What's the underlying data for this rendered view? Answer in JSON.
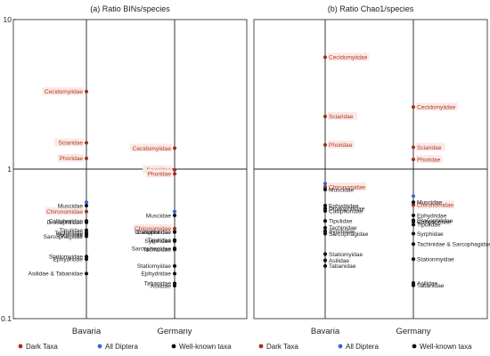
{
  "chart_data": [
    {
      "type": "scatter",
      "title": "(a) Ratio BINs/species",
      "yscale": "log",
      "ylim": [
        0.1,
        10
      ],
      "yticks": [
        "10",
        "1",
        "0.1"
      ],
      "categories": [
        "Bavaria",
        "Germany"
      ],
      "series": [
        {
          "name": "Dark Taxa",
          "color": "#a0321e",
          "points": [
            {
              "x": "Bavaria",
              "y": 3.3,
              "label": "Cecidomyiidae"
            },
            {
              "x": "Bavaria",
              "y": 1.5,
              "label": "Sciaridae"
            },
            {
              "x": "Bavaria",
              "y": 1.18,
              "label": "Phoridae"
            },
            {
              "x": "Bavaria",
              "y": 0.52,
              "label": "Chironomidae"
            },
            {
              "x": "Germany",
              "y": 1.38,
              "label": "Cecidomyiidae"
            },
            {
              "x": "Germany",
              "y": 0.99,
              "label": "Sciaridae"
            },
            {
              "x": "Germany",
              "y": 0.93,
              "label": "Phoridae"
            },
            {
              "x": "Germany",
              "y": 0.4,
              "label": "Chironomidae"
            }
          ]
        },
        {
          "name": "All Diptera",
          "color": "#3a64d8",
          "points": [
            {
              "x": "Bavaria",
              "y": 0.6
            },
            {
              "x": "Germany",
              "y": 0.52
            }
          ]
        },
        {
          "name": "Well-known taxa",
          "color": "#111111",
          "points": [
            {
              "x": "Bavaria",
              "y": 0.57,
              "label": "Muscidae"
            },
            {
              "x": "Bavaria",
              "y": 0.45,
              "label": "Calliphoridae"
            },
            {
              "x": "Bavaria",
              "y": 0.44,
              "label": "Drosophilidae"
            },
            {
              "x": "Bavaria",
              "y": 0.39,
              "label": "Tipulidae"
            },
            {
              "x": "Bavaria",
              "y": 0.375,
              "label": "Tachinidae"
            },
            {
              "x": "Bavaria",
              "y": 0.365,
              "label": "Syrphidae"
            },
            {
              "x": "Bavaria",
              "y": 0.355,
              "label": "Sarcophagidae"
            },
            {
              "x": "Bavaria",
              "y": 0.26,
              "label": "Statiomyidae"
            },
            {
              "x": "Bavaria",
              "y": 0.25,
              "label": "Ephydridae"
            },
            {
              "x": "Bavaria",
              "y": 0.2,
              "label": "Asilidae & Tabanidae"
            },
            {
              "x": "Germany",
              "y": 0.49,
              "label": "Muscidae"
            },
            {
              "x": "Germany",
              "y": 0.38,
              "label": "Drosophilidae"
            },
            {
              "x": "Germany",
              "y": 0.38,
              "label": "Calliphoridae"
            },
            {
              "x": "Germany",
              "y": 0.335,
              "label": "Tipulidae"
            },
            {
              "x": "Germany",
              "y": 0.33,
              "label": "Syrphidae"
            },
            {
              "x": "Germany",
              "y": 0.295,
              "label": "Sarcophagidae"
            },
            {
              "x": "Germany",
              "y": 0.29,
              "label": "Tachinidae"
            },
            {
              "x": "Germany",
              "y": 0.225,
              "label": "Statiomyidae"
            },
            {
              "x": "Germany",
              "y": 0.2,
              "label": "Ephydridae"
            },
            {
              "x": "Germany",
              "y": 0.172,
              "label": "Tabanidae"
            },
            {
              "x": "Germany",
              "y": 0.166,
              "label": "Asilidae"
            }
          ]
        }
      ],
      "legend": [
        "Dark Taxa",
        "All Diptera",
        "Well-known taxa"
      ],
      "legend_position": "bottom",
      "grid": false
    },
    {
      "type": "scatter",
      "title": "(b) Ratio Chao1/species",
      "yscale": "log",
      "ylim": [
        0.1,
        10
      ],
      "yticks": [],
      "categories": [
        "Bavaria",
        "Germany"
      ],
      "series": [
        {
          "name": "Dark Taxa",
          "color": "#a0321e",
          "points": [
            {
              "x": "Bavaria",
              "y": 5.6,
              "label": "Cecidomyiidae"
            },
            {
              "x": "Bavaria",
              "y": 2.25,
              "label": "Sciaridae"
            },
            {
              "x": "Bavaria",
              "y": 1.45,
              "label": "Phoridae"
            },
            {
              "x": "Bavaria",
              "y": 0.76,
              "label": "Chironomidae"
            },
            {
              "x": "Germany",
              "y": 2.6,
              "label": "Cecidomyiidae"
            },
            {
              "x": "Germany",
              "y": 1.4,
              "label": "Sciaridae"
            },
            {
              "x": "Germany",
              "y": 1.16,
              "label": "Phoridae"
            },
            {
              "x": "Germany",
              "y": 0.575,
              "label": "Chironomidae"
            }
          ]
        },
        {
          "name": "All Diptera",
          "color": "#3a64d8",
          "points": [
            {
              "x": "Bavaria",
              "y": 0.8
            },
            {
              "x": "Germany",
              "y": 0.66
            }
          ]
        },
        {
          "name": "Well-known taxa",
          "color": "#111111",
          "points": [
            {
              "x": "Bavaria",
              "y": 0.73,
              "label": "Muscidae"
            },
            {
              "x": "Bavaria",
              "y": 0.57,
              "label": "Ephydridae"
            },
            {
              "x": "Bavaria",
              "y": 0.545,
              "label": "Drosophilidae"
            },
            {
              "x": "Bavaria",
              "y": 0.525,
              "label": "Calliphoridae"
            },
            {
              "x": "Bavaria",
              "y": 0.45,
              "label": "Tipulidae"
            },
            {
              "x": "Bavaria",
              "y": 0.385,
              "label": "Syrphidae"
            },
            {
              "x": "Bavaria",
              "y": 0.405,
              "label": "Tachinidae"
            },
            {
              "x": "Bavaria",
              "y": 0.37,
              "label": "Sarcophagidae"
            },
            {
              "x": "Bavaria",
              "y": 0.27,
              "label": "Statiomyidae"
            },
            {
              "x": "Bavaria",
              "y": 0.245,
              "label": "Asilidae"
            },
            {
              "x": "Bavaria",
              "y": 0.225,
              "label": "Tabanidae"
            },
            {
              "x": "Germany",
              "y": 0.6,
              "label": "Muscidae"
            },
            {
              "x": "Germany",
              "y": 0.49,
              "label": "Ephydridae"
            },
            {
              "x": "Germany",
              "y": 0.455,
              "label": "Drosophilidae"
            },
            {
              "x": "Germany",
              "y": 0.445,
              "label": "Calliphoridae"
            },
            {
              "x": "Germany",
              "y": 0.425,
              "label": "Tipulidae"
            },
            {
              "x": "Germany",
              "y": 0.37,
              "label": "Syrphidae"
            },
            {
              "x": "Germany",
              "y": 0.315,
              "label": "Tachinidae & Sarcophagidae"
            },
            {
              "x": "Germany",
              "y": 0.25,
              "label": "Stationmyidae"
            },
            {
              "x": "Germany",
              "y": 0.173,
              "label": "Asilidae"
            },
            {
              "x": "Germany",
              "y": 0.167,
              "label": "Tabanidae"
            }
          ]
        }
      ],
      "legend": [
        "Dark Taxa",
        "All Diptera",
        "Well-known taxa"
      ],
      "legend_position": "bottom",
      "grid": false
    }
  ]
}
